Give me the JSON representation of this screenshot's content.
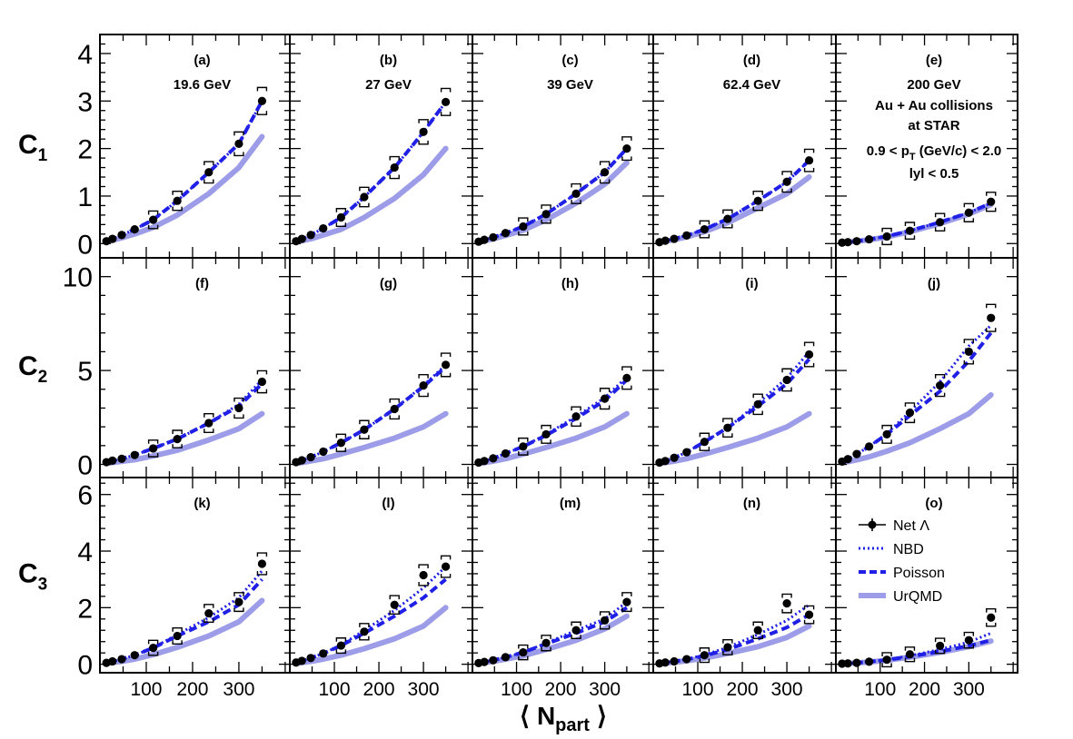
{
  "colors": {
    "data": "#000000",
    "nbd": "#1f1fe6",
    "poisson": "#1f1fe6",
    "urqmd": "#9c9ce8"
  },
  "xaxis": {
    "title_main": "N",
    "title_sub": "part",
    "title_open": "⟨",
    "title_close": "⟩",
    "ticks": [
      100,
      200,
      300
    ],
    "range": [
      0,
      410
    ]
  },
  "rows": [
    {
      "label": "C",
      "sub": "1",
      "ylim": [
        -0.3,
        4.4
      ],
      "yticks": [
        0,
        1,
        2,
        3,
        4
      ]
    },
    {
      "label": "C",
      "sub": "2",
      "ylim": [
        -0.7,
        11.0
      ],
      "yticks": [
        0,
        5,
        10
      ]
    },
    {
      "label": "C",
      "sub": "3",
      "ylim": [
        -0.3,
        6.6
      ],
      "yticks": [
        0,
        2,
        4,
        6
      ]
    }
  ],
  "panel_text_e": [
    "200 GeV",
    "Au + Au collisions",
    "at STAR",
    "0.9 < p",
    "T",
    " (GeV/c) < 2.0",
    "lyl < 0.5"
  ],
  "legend": {
    "data": "Net Λ",
    "nbd": "NBD",
    "poisson": "Poisson",
    "urqmd": "UrQMD"
  },
  "chart_data": {
    "type": "scatter",
    "title": "",
    "xlabel": "⟨ N_part ⟩",
    "grid": false,
    "legend_position": "panel (o), right",
    "x": [
      6,
      14,
      27,
      47,
      75,
      115,
      167,
      235,
      300,
      350
    ],
    "panels": [
      {
        "id": "(a)",
        "energy": "19.6 GeV",
        "ylabel": "C1",
        "net_lambda": [
          0.05,
          0.1,
          0.18,
          0.3,
          0.5,
          0.9,
          1.5,
          2.1,
          3.0
        ],
        "x_idx": [
          1,
          2,
          3,
          4,
          5,
          6,
          7,
          8,
          9
        ],
        "poisson": [
          0.05,
          0.1,
          0.18,
          0.3,
          0.5,
          0.9,
          1.5,
          2.1,
          3.0
        ],
        "nbd": [
          0.05,
          0.1,
          0.18,
          0.3,
          0.5,
          0.9,
          1.5,
          2.1,
          3.0
        ],
        "urqmd": [
          0.03,
          0.07,
          0.12,
          0.2,
          0.34,
          0.6,
          1.05,
          1.6,
          2.25
        ]
      },
      {
        "id": "(b)",
        "energy": "27 GeV",
        "ylabel": "C1",
        "net_lambda": [
          0.05,
          0.1,
          0.18,
          0.32,
          0.55,
          0.98,
          1.6,
          2.35,
          2.98
        ],
        "x_idx": [
          1,
          2,
          3,
          4,
          5,
          6,
          7,
          8,
          9
        ],
        "poisson": [
          0.05,
          0.1,
          0.18,
          0.32,
          0.55,
          0.98,
          1.6,
          2.35,
          2.98
        ],
        "nbd": [
          0.05,
          0.1,
          0.18,
          0.32,
          0.55,
          0.98,
          1.6,
          2.35,
          2.98
        ],
        "urqmd": [
          0.03,
          0.06,
          0.1,
          0.18,
          0.3,
          0.55,
          0.95,
          1.45,
          2.0
        ]
      },
      {
        "id": "(c)",
        "energy": "39 GeV",
        "ylabel": "C1",
        "net_lambda": [
          0.04,
          0.08,
          0.13,
          0.22,
          0.36,
          0.62,
          1.05,
          1.5,
          2.0
        ],
        "x_idx": [
          1,
          2,
          3,
          4,
          5,
          6,
          7,
          8,
          9
        ],
        "poisson": [
          0.04,
          0.08,
          0.13,
          0.22,
          0.36,
          0.62,
          1.05,
          1.5,
          2.0
        ],
        "nbd": [
          0.04,
          0.08,
          0.13,
          0.22,
          0.36,
          0.62,
          1.05,
          1.5,
          2.0
        ],
        "urqmd": [
          0.03,
          0.06,
          0.1,
          0.17,
          0.28,
          0.5,
          0.85,
          1.25,
          1.7
        ]
      },
      {
        "id": "(d)",
        "energy": "62.4 GeV",
        "ylabel": "C1",
        "net_lambda": [
          0.03,
          0.06,
          0.1,
          0.17,
          0.3,
          0.52,
          0.9,
          1.3,
          1.75
        ],
        "x_idx": [
          1,
          2,
          3,
          4,
          5,
          6,
          7,
          8,
          9
        ],
        "poisson": [
          0.03,
          0.06,
          0.1,
          0.17,
          0.3,
          0.52,
          0.9,
          1.3,
          1.75
        ],
        "nbd": [
          0.03,
          0.06,
          0.1,
          0.17,
          0.3,
          0.52,
          0.9,
          1.3,
          1.75
        ],
        "urqmd": [
          0.02,
          0.05,
          0.08,
          0.14,
          0.25,
          0.44,
          0.75,
          1.05,
          1.4
        ]
      },
      {
        "id": "(e)",
        "energy": "200 GeV",
        "ylabel": "C1",
        "net_lambda": [
          0.02,
          0.03,
          0.05,
          0.09,
          0.15,
          0.27,
          0.45,
          0.65,
          0.88
        ],
        "x_idx": [
          1,
          2,
          3,
          4,
          5,
          6,
          7,
          8,
          9
        ],
        "poisson": [
          0.02,
          0.03,
          0.05,
          0.09,
          0.15,
          0.27,
          0.45,
          0.65,
          0.85
        ],
        "nbd": [
          0.02,
          0.03,
          0.05,
          0.09,
          0.15,
          0.27,
          0.45,
          0.65,
          0.85
        ],
        "urqmd": [
          0.02,
          0.03,
          0.05,
          0.08,
          0.14,
          0.25,
          0.42,
          0.62,
          0.82
        ]
      },
      {
        "id": "(f)",
        "ylabel": "C2",
        "net_lambda": [
          0.12,
          0.2,
          0.3,
          0.5,
          0.85,
          1.35,
          2.2,
          3.0,
          4.4
        ],
        "x_idx": [
          1,
          2,
          3,
          4,
          5,
          6,
          7,
          8,
          9
        ],
        "poisson": [
          0.12,
          0.2,
          0.3,
          0.5,
          0.85,
          1.35,
          2.2,
          3.1,
          4.3
        ],
        "nbd": [
          0.12,
          0.2,
          0.3,
          0.5,
          0.85,
          1.35,
          2.2,
          3.2,
          4.5
        ],
        "urqmd": [
          0.06,
          0.1,
          0.16,
          0.25,
          0.45,
          0.75,
          1.3,
          1.9,
          2.7
        ]
      },
      {
        "id": "(g)",
        "ylabel": "C2",
        "net_lambda": [
          0.12,
          0.22,
          0.38,
          0.68,
          1.15,
          1.85,
          2.95,
          4.2,
          5.3
        ],
        "x_idx": [
          1,
          2,
          3,
          4,
          5,
          6,
          7,
          8,
          9
        ],
        "poisson": [
          0.12,
          0.22,
          0.38,
          0.68,
          1.15,
          1.85,
          2.95,
          4.15,
          5.2
        ],
        "nbd": [
          0.12,
          0.22,
          0.38,
          0.68,
          1.15,
          1.85,
          2.95,
          4.2,
          5.3
        ],
        "urqmd": [
          0.06,
          0.1,
          0.18,
          0.3,
          0.55,
          0.9,
          1.4,
          2.0,
          2.7
        ]
      },
      {
        "id": "(h)",
        "ylabel": "C2",
        "net_lambda": [
          0.1,
          0.18,
          0.32,
          0.58,
          0.95,
          1.6,
          2.55,
          3.5,
          4.6
        ],
        "x_idx": [
          1,
          2,
          3,
          4,
          5,
          6,
          7,
          8,
          9
        ],
        "poisson": [
          0.1,
          0.18,
          0.32,
          0.58,
          0.95,
          1.55,
          2.45,
          3.4,
          4.5
        ],
        "nbd": [
          0.1,
          0.18,
          0.32,
          0.58,
          0.95,
          1.6,
          2.55,
          3.55,
          4.65
        ],
        "urqmd": [
          0.06,
          0.1,
          0.17,
          0.3,
          0.55,
          0.9,
          1.4,
          2.0,
          2.7
        ]
      },
      {
        "id": "(i)",
        "ylabel": "C2",
        "net_lambda": [
          0.1,
          0.18,
          0.35,
          0.65,
          1.2,
          1.95,
          3.2,
          4.5,
          5.85
        ],
        "x_idx": [
          1,
          2,
          3,
          4,
          5,
          6,
          7,
          8,
          9
        ],
        "poisson": [
          0.1,
          0.18,
          0.35,
          0.65,
          1.2,
          1.95,
          3.1,
          4.3,
          5.6
        ],
        "nbd": [
          0.1,
          0.18,
          0.35,
          0.65,
          1.2,
          1.95,
          3.25,
          4.6,
          6.0
        ],
        "urqmd": [
          0.06,
          0.1,
          0.17,
          0.3,
          0.55,
          0.9,
          1.4,
          2.0,
          2.7
        ]
      },
      {
        "id": "(j)",
        "ylabel": "C2",
        "net_lambda": [
          0.15,
          0.28,
          0.55,
          0.95,
          1.6,
          2.75,
          4.2,
          6.0,
          7.8
        ],
        "x_idx": [
          1,
          2,
          3,
          4,
          5,
          6,
          7,
          8,
          9
        ],
        "poisson": [
          0.15,
          0.28,
          0.55,
          0.95,
          1.6,
          2.6,
          3.9,
          5.5,
          7.0
        ],
        "nbd": [
          0.15,
          0.28,
          0.55,
          0.95,
          1.65,
          2.8,
          4.4,
          6.3,
          7.4
        ],
        "urqmd": [
          0.08,
          0.14,
          0.24,
          0.4,
          0.7,
          1.15,
          1.9,
          2.7,
          3.7
        ]
      },
      {
        "id": "(k)",
        "ylabel": "C3",
        "net_lambda": [
          0.05,
          0.1,
          0.18,
          0.32,
          0.58,
          1.0,
          1.8,
          2.2,
          3.55
        ],
        "x_idx": [
          1,
          2,
          3,
          4,
          5,
          6,
          7,
          8,
          9
        ],
        "poisson": [
          0.05,
          0.1,
          0.18,
          0.32,
          0.58,
          1.0,
          1.5,
          2.1,
          3.0
        ],
        "nbd": [
          0.05,
          0.1,
          0.18,
          0.32,
          0.58,
          1.05,
          1.65,
          2.35,
          3.3
        ],
        "urqmd": [
          0.03,
          0.06,
          0.1,
          0.18,
          0.34,
          0.6,
          1.0,
          1.5,
          2.25
        ]
      },
      {
        "id": "(l)",
        "ylabel": "C3",
        "net_lambda": [
          0.06,
          0.12,
          0.22,
          0.38,
          0.66,
          1.15,
          2.1,
          3.15,
          3.45
        ],
        "x_idx": [
          1,
          2,
          3,
          4,
          5,
          6,
          7,
          8,
          9
        ],
        "poisson": [
          0.06,
          0.12,
          0.22,
          0.38,
          0.66,
          1.1,
          1.7,
          2.35,
          3.0
        ],
        "nbd": [
          0.06,
          0.12,
          0.22,
          0.38,
          0.68,
          1.2,
          1.9,
          2.7,
          3.45
        ],
        "urqmd": [
          0.03,
          0.06,
          0.1,
          0.18,
          0.32,
          0.55,
          0.9,
          1.35,
          2.0
        ]
      },
      {
        "id": "(m)",
        "ylabel": "C3",
        "net_lambda": [
          0.04,
          0.08,
          0.14,
          0.25,
          0.42,
          0.75,
          1.2,
          1.55,
          2.2
        ],
        "x_idx": [
          1,
          2,
          3,
          4,
          5,
          6,
          7,
          8,
          9
        ],
        "poisson": [
          0.04,
          0.08,
          0.14,
          0.25,
          0.42,
          0.72,
          1.1,
          1.5,
          2.0
        ],
        "nbd": [
          0.04,
          0.08,
          0.14,
          0.25,
          0.42,
          0.75,
          1.2,
          1.6,
          2.2
        ],
        "urqmd": [
          0.03,
          0.06,
          0.1,
          0.18,
          0.3,
          0.52,
          0.85,
          1.25,
          1.7
        ]
      },
      {
        "id": "(n)",
        "ylabel": "C3",
        "net_lambda": [
          0.03,
          0.06,
          0.1,
          0.18,
          0.32,
          0.6,
          1.2,
          2.15,
          1.75
        ],
        "x_idx": [
          1,
          2,
          3,
          4,
          5,
          6,
          7,
          8,
          9
        ],
        "poisson": [
          0.03,
          0.06,
          0.1,
          0.17,
          0.3,
          0.52,
          0.9,
          1.3,
          1.75
        ],
        "nbd": [
          0.03,
          0.06,
          0.1,
          0.18,
          0.33,
          0.6,
          1.05,
          1.55,
          2.1
        ],
        "urqmd": [
          0.02,
          0.04,
          0.07,
          0.12,
          0.22,
          0.38,
          0.62,
          0.95,
          1.35
        ]
      },
      {
        "id": "(o)",
        "ylabel": "C3",
        "net_lambda": [
          0.02,
          0.03,
          0.05,
          0.09,
          0.16,
          0.35,
          0.65,
          0.85,
          1.65
        ],
        "x_idx": [
          1,
          2,
          3,
          4,
          5,
          6,
          7,
          8,
          9
        ],
        "poisson": [
          0.02,
          0.03,
          0.05,
          0.09,
          0.15,
          0.27,
          0.45,
          0.65,
          0.85
        ],
        "nbd": [
          0.02,
          0.03,
          0.05,
          0.09,
          0.16,
          0.3,
          0.52,
          0.78,
          1.1
        ],
        "urqmd": [
          0.02,
          0.03,
          0.05,
          0.08,
          0.14,
          0.25,
          0.42,
          0.62,
          0.82
        ]
      }
    ]
  }
}
